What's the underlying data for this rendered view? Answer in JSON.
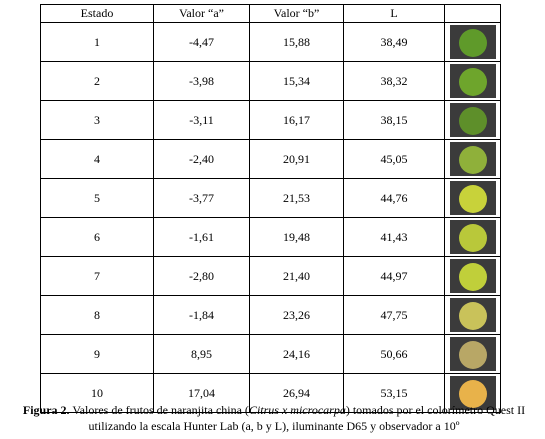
{
  "table": {
    "header": [
      "Estado",
      "Valor “a”",
      "Valor “b”",
      "L"
    ],
    "rows": [
      [
        "1",
        "-4,47",
        "15,88",
        "38,49"
      ],
      [
        "2",
        "-3,98",
        "15,34",
        "38,32"
      ],
      [
        "3",
        "-3,11",
        "16,17",
        "38,15"
      ],
      [
        "4",
        "-2,40",
        "20,91",
        "45,05"
      ],
      [
        "5",
        "-3,77",
        "21,53",
        "44,76"
      ],
      [
        "6",
        "-1,61",
        "19,48",
        "41,43"
      ],
      [
        "7",
        "-2,80",
        "21,40",
        "44,97"
      ],
      [
        "8",
        "-1,84",
        "23,26",
        "47,75"
      ],
      [
        "9",
        "8,95",
        "24,16",
        "50,66"
      ],
      [
        "10",
        "17,04",
        "26,94",
        "53,15"
      ]
    ]
  },
  "caption": {
    "label": "Figura 2.",
    "text_before": "  Valores  de frutos de naranjita china (",
    "species": "Citrus x microcarpa",
    "text_after": ") tomados por el colorímetro Quest II",
    "line2": "utilizando la escala Hunter Lab (a, b y  L), iluminante D65 y observador a 10º"
  }
}
